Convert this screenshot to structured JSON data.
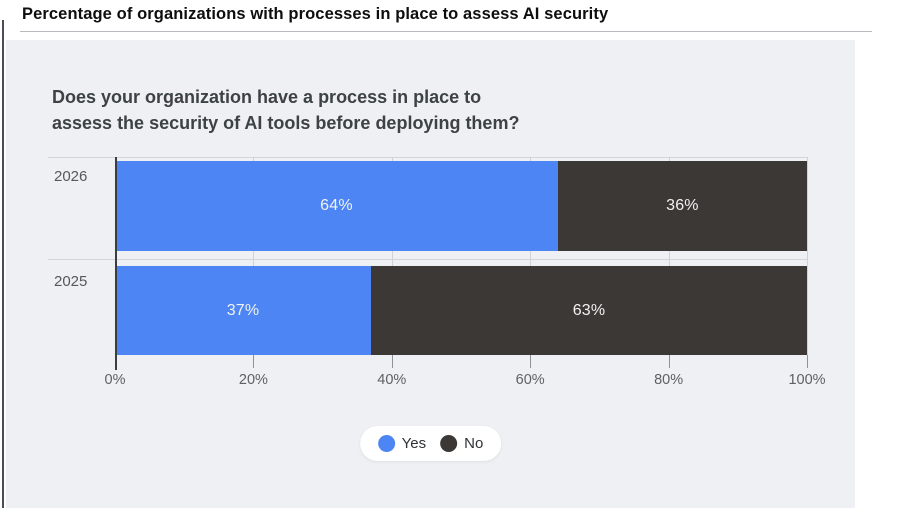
{
  "page": {
    "title": "Percentage of organizations with processes in place to assess AI security"
  },
  "card": {
    "question_line1": "Does your organization have a process in place to",
    "question_line2": "assess the security of AI tools before deploying them?"
  },
  "chart_data": {
    "type": "bar",
    "orientation": "horizontal",
    "stacked": true,
    "title": "Does your organization have a process in place to assess the security of AI tools before deploying them?",
    "categories": [
      "2026",
      "2025"
    ],
    "series": [
      {
        "name": "Yes",
        "color": "#4d86f4",
        "values": [
          64,
          37
        ]
      },
      {
        "name": "No",
        "color": "#3b3836",
        "values": [
          36,
          63
        ]
      }
    ],
    "bar_labels": [
      [
        "64%",
        "36%"
      ],
      [
        "37%",
        "63%"
      ]
    ],
    "x_ticks": [
      "0%",
      "20%",
      "40%",
      "60%",
      "80%",
      "100%"
    ],
    "xlim": [
      0,
      100
    ],
    "grid": true,
    "legend": {
      "position": "bottom",
      "entries": [
        {
          "label": "Yes",
          "color": "#4d86f4"
        },
        {
          "label": "No",
          "color": "#3b3836"
        }
      ]
    },
    "colors": {
      "card_background": "#eef0f3",
      "bar_label_text": "#f2f2f0",
      "axis": "#3b3e41",
      "gridline": "#cfd2d5"
    }
  }
}
